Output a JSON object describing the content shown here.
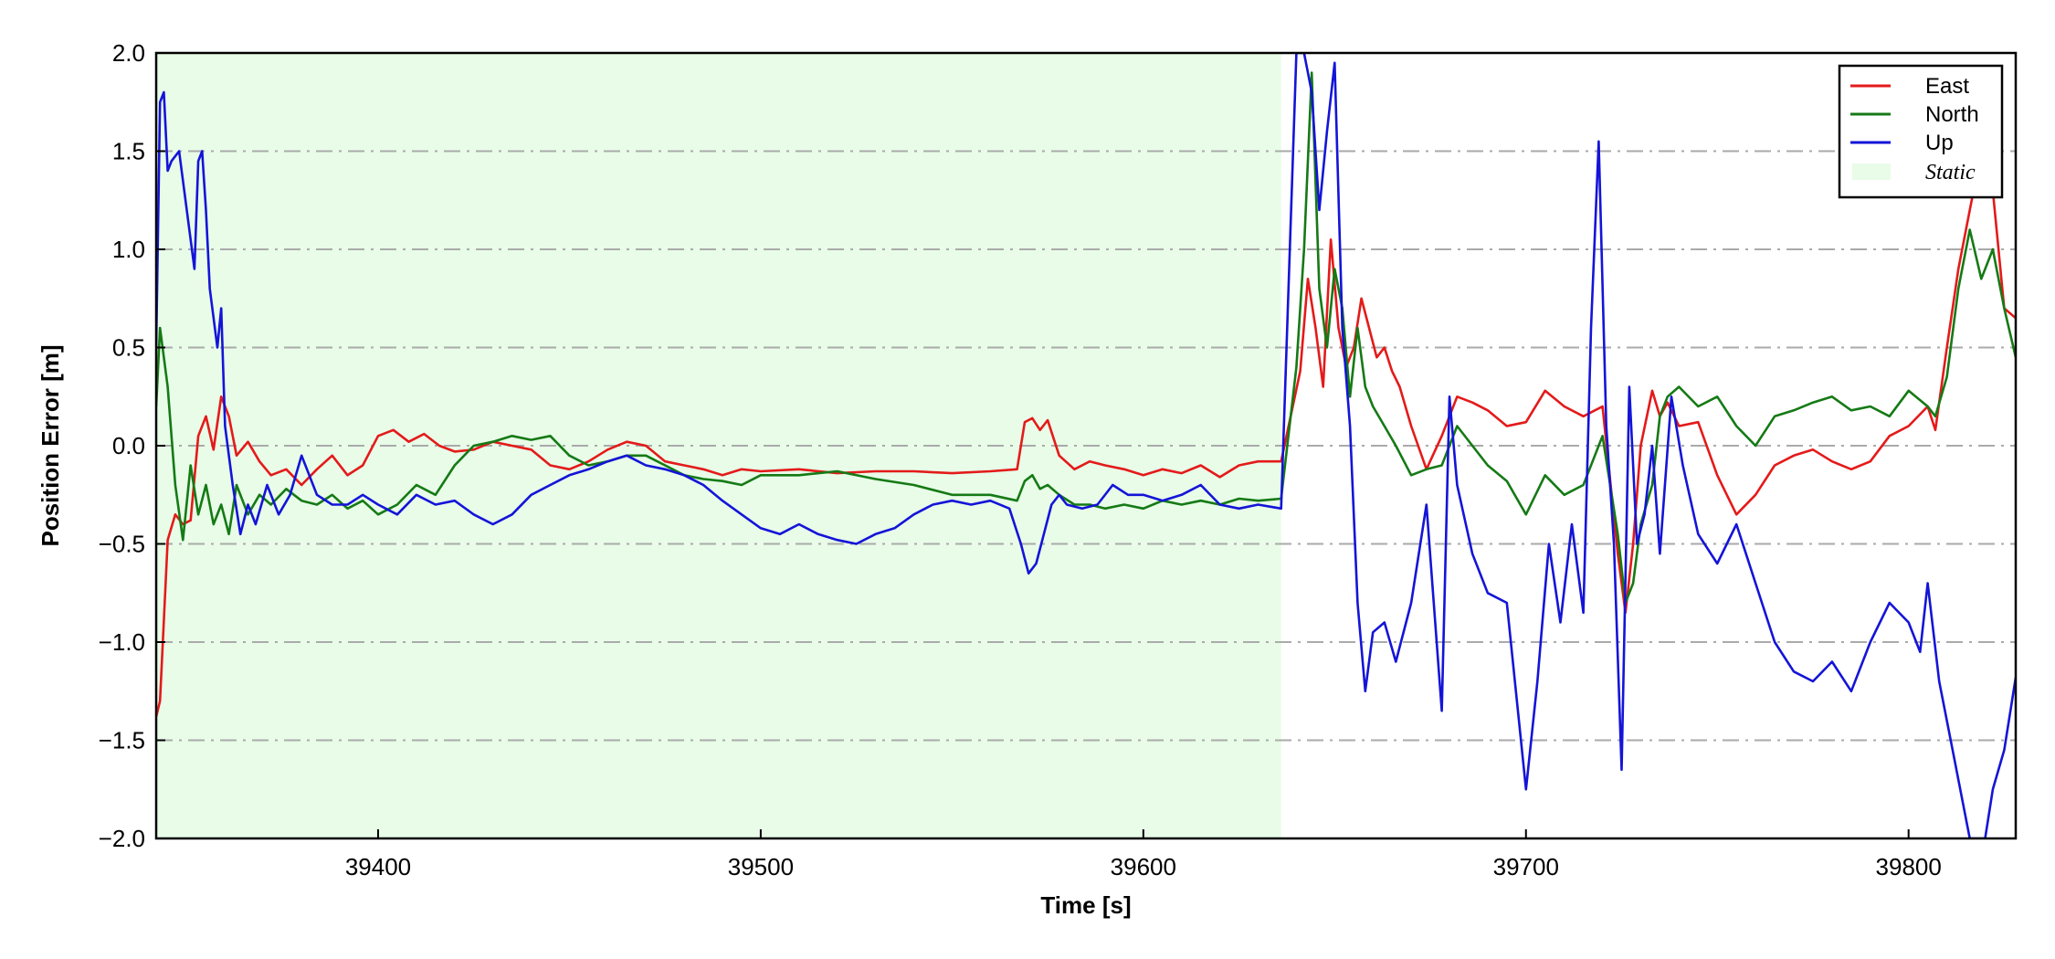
{
  "chart_data": {
    "type": "line",
    "title": "",
    "xlabel": "Time [s]",
    "ylabel": "Position Error [m]",
    "xlim": [
      39342,
      39828
    ],
    "ylim": [
      -2.0,
      2.0
    ],
    "xticks": [
      39400,
      39500,
      39600,
      39700,
      39800
    ],
    "xtick_labels": [
      "39400",
      "39500",
      "39600",
      "39700",
      "39800"
    ],
    "yticks": [
      -2.0,
      -1.5,
      -1.0,
      -0.5,
      0.0,
      0.5,
      1.0,
      1.5,
      2.0
    ],
    "ytick_labels": [
      "−2.0",
      "−1.5",
      "−1.0",
      "−0.5",
      "0.0",
      "0.5",
      "1.0",
      "1.5",
      "2.0"
    ],
    "grid": "horizontal dash-dot",
    "legend_position": "top-right",
    "static_region": {
      "name": "Static",
      "x_start": 39342,
      "x_end": 39636,
      "color": "#e8fce8"
    },
    "series": [
      {
        "name": "East",
        "color": "#e41a1a",
        "x": [
          39342,
          39343,
          39345,
          39347,
          39349,
          39351,
          39353,
          39355,
          39357,
          39359,
          39361,
          39363,
          39366,
          39369,
          39372,
          39376,
          39380,
          39384,
          39388,
          39392,
          39396,
          39400,
          39404,
          39408,
          39412,
          39416,
          39420,
          39425,
          39430,
          39435,
          39440,
          39445,
          39450,
          39455,
          39460,
          39465,
          39470,
          39475,
          39480,
          39485,
          39490,
          39495,
          39500,
          39510,
          39520,
          39530,
          39540,
          39550,
          39560,
          39567,
          39569,
          39571,
          39573,
          39575,
          39578,
          39582,
          39586,
          39590,
          39595,
          39600,
          39605,
          39610,
          39615,
          39620,
          39625,
          39630,
          39636,
          39641,
          39643,
          39645,
          39647,
          39649,
          39651,
          39653,
          39655,
          39657,
          39659,
          39661,
          39663,
          39665,
          39667,
          39670,
          39674,
          39678,
          39682,
          39686,
          39690,
          39695,
          39700,
          39705,
          39710,
          39715,
          39720,
          39724,
          39726,
          39728,
          39730,
          39733,
          39735,
          39737,
          39740,
          39745,
          39750,
          39755,
          39760,
          39765,
          39770,
          39775,
          39780,
          39785,
          39790,
          39795,
          39800,
          39805,
          39807,
          39810,
          39813,
          39816,
          39819,
          39822,
          39825,
          39828
        ],
        "values": [
          -1.38,
          -1.3,
          -0.48,
          -0.35,
          -0.4,
          -0.38,
          0.05,
          0.15,
          -0.02,
          0.25,
          0.15,
          -0.05,
          0.02,
          -0.08,
          -0.15,
          -0.12,
          -0.2,
          -0.12,
          -0.05,
          -0.15,
          -0.1,
          0.05,
          0.08,
          0.02,
          0.06,
          0.0,
          -0.03,
          -0.02,
          0.02,
          0.0,
          -0.02,
          -0.1,
          -0.12,
          -0.08,
          -0.02,
          0.02,
          0.0,
          -0.08,
          -0.1,
          -0.12,
          -0.15,
          -0.12,
          -0.13,
          -0.12,
          -0.14,
          -0.13,
          -0.13,
          -0.14,
          -0.13,
          -0.12,
          0.12,
          0.14,
          0.08,
          0.13,
          -0.05,
          -0.12,
          -0.08,
          -0.1,
          -0.12,
          -0.15,
          -0.12,
          -0.14,
          -0.1,
          -0.16,
          -0.1,
          -0.08,
          -0.08,
          0.38,
          0.85,
          0.6,
          0.3,
          1.05,
          0.6,
          0.4,
          0.5,
          0.75,
          0.6,
          0.45,
          0.5,
          0.38,
          0.3,
          0.1,
          -0.12,
          0.05,
          0.25,
          0.22,
          0.18,
          0.1,
          0.12,
          0.28,
          0.2,
          0.15,
          0.2,
          -0.55,
          -0.85,
          -0.5,
          0.0,
          0.28,
          0.15,
          0.22,
          0.1,
          0.12,
          -0.15,
          -0.35,
          -0.25,
          -0.1,
          -0.05,
          -0.02,
          -0.08,
          -0.12,
          -0.08,
          0.05,
          0.1,
          0.2,
          0.08,
          0.5,
          0.9,
          1.2,
          1.5,
          1.3,
          0.7,
          0.65
        ]
      },
      {
        "name": "North",
        "color": "#157a15",
        "x": [
          39342,
          39343,
          39345,
          39347,
          39349,
          39351,
          39353,
          39355,
          39357,
          39359,
          39361,
          39363,
          39366,
          39369,
          39372,
          39376,
          39380,
          39384,
          39388,
          39392,
          39396,
          39400,
          39405,
          39410,
          39415,
          39420,
          39425,
          39430,
          39435,
          39440,
          39445,
          39450,
          39455,
          39460,
          39465,
          39470,
          39475,
          39480,
          39485,
          39490,
          39495,
          39500,
          39510,
          39520,
          39530,
          39540,
          39550,
          39560,
          39567,
          39569,
          39571,
          39573,
          39575,
          39578,
          39582,
          39586,
          39590,
          39595,
          39600,
          39605,
          39610,
          39615,
          39620,
          39625,
          39630,
          39636,
          39640,
          39642,
          39644,
          39646,
          39648,
          39650,
          39652,
          39654,
          39656,
          39658,
          39660,
          39663,
          39666,
          39670,
          39674,
          39678,
          39682,
          39686,
          39690,
          39695,
          39700,
          39705,
          39710,
          39715,
          39720,
          39724,
          39726,
          39728,
          39730,
          39733,
          39735,
          39737,
          39740,
          39745,
          39750,
          39755,
          39760,
          39765,
          39770,
          39775,
          39780,
          39785,
          39790,
          39795,
          39800,
          39805,
          39807,
          39810,
          39813,
          39816,
          39819,
          39822,
          39825,
          39828
        ],
        "values": [
          0.2,
          0.6,
          0.3,
          -0.2,
          -0.48,
          -0.1,
          -0.35,
          -0.2,
          -0.4,
          -0.3,
          -0.45,
          -0.2,
          -0.35,
          -0.25,
          -0.3,
          -0.22,
          -0.28,
          -0.3,
          -0.25,
          -0.32,
          -0.28,
          -0.35,
          -0.3,
          -0.2,
          -0.25,
          -0.1,
          0.0,
          0.02,
          0.05,
          0.03,
          0.05,
          -0.05,
          -0.1,
          -0.08,
          -0.05,
          -0.05,
          -0.1,
          -0.15,
          -0.17,
          -0.18,
          -0.2,
          -0.15,
          -0.15,
          -0.13,
          -0.17,
          -0.2,
          -0.25,
          -0.25,
          -0.28,
          -0.18,
          -0.15,
          -0.22,
          -0.2,
          -0.25,
          -0.3,
          -0.3,
          -0.32,
          -0.3,
          -0.32,
          -0.28,
          -0.3,
          -0.28,
          -0.3,
          -0.27,
          -0.28,
          -0.27,
          0.4,
          1.0,
          1.9,
          0.8,
          0.5,
          0.9,
          0.7,
          0.25,
          0.6,
          0.3,
          0.2,
          0.1,
          0.0,
          -0.15,
          -0.12,
          -0.1,
          0.1,
          0.0,
          -0.1,
          -0.18,
          -0.35,
          -0.15,
          -0.25,
          -0.2,
          0.05,
          -0.45,
          -0.8,
          -0.7,
          -0.4,
          -0.2,
          0.15,
          0.25,
          0.3,
          0.2,
          0.25,
          0.1,
          0.0,
          0.15,
          0.18,
          0.22,
          0.25,
          0.18,
          0.2,
          0.15,
          0.28,
          0.2,
          0.15,
          0.35,
          0.8,
          1.1,
          0.85,
          1.0,
          0.7,
          0.45
        ]
      },
      {
        "name": "Up",
        "color": "#1414d8",
        "x": [
          39342,
          39343,
          39344,
          39345,
          39346,
          39348,
          39350,
          39352,
          39353,
          39354,
          39355,
          39356,
          39358,
          39359,
          39360,
          39362,
          39364,
          39366,
          39368,
          39371,
          39374,
          39377,
          39380,
          39384,
          39388,
          39392,
          39396,
          39400,
          39405,
          39410,
          39415,
          39420,
          39425,
          39430,
          39435,
          39440,
          39445,
          39450,
          39455,
          39460,
          39465,
          39470,
          39475,
          39480,
          39485,
          39490,
          39495,
          39500,
          39505,
          39510,
          39515,
          39520,
          39525,
          39530,
          39535,
          39540,
          39545,
          39550,
          39555,
          39560,
          39565,
          39568,
          39570,
          39572,
          39574,
          39576,
          39578,
          39580,
          39584,
          39588,
          39592,
          39596,
          39600,
          39605,
          39610,
          39615,
          39620,
          39625,
          39630,
          39636,
          39640,
          39642,
          39644,
          39646,
          39648,
          39650,
          39652,
          39654,
          39656,
          39658,
          39660,
          39663,
          39666,
          39670,
          39674,
          39678,
          39680,
          39682,
          39686,
          39690,
          39695,
          39700,
          39703,
          39706,
          39709,
          39712,
          39715,
          39717,
          39719,
          39721,
          39723,
          39725,
          39727,
          39729,
          39731,
          39733,
          39735,
          39738,
          39741,
          39745,
          39750,
          39755,
          39760,
          39765,
          39770,
          39775,
          39780,
          39785,
          39790,
          39795,
          39800,
          39803,
          39805,
          39808,
          39812,
          39816,
          39820,
          39822,
          39825,
          39828
        ],
        "values": [
          0.5,
          1.75,
          1.8,
          1.4,
          1.45,
          1.5,
          1.2,
          0.9,
          1.45,
          1.5,
          1.2,
          0.8,
          0.5,
          0.7,
          0.1,
          -0.2,
          -0.45,
          -0.3,
          -0.4,
          -0.2,
          -0.35,
          -0.25,
          -0.05,
          -0.25,
          -0.3,
          -0.3,
          -0.25,
          -0.3,
          -0.35,
          -0.25,
          -0.3,
          -0.28,
          -0.35,
          -0.4,
          -0.35,
          -0.25,
          -0.2,
          -0.15,
          -0.12,
          -0.08,
          -0.05,
          -0.1,
          -0.12,
          -0.15,
          -0.2,
          -0.28,
          -0.35,
          -0.42,
          -0.45,
          -0.4,
          -0.45,
          -0.48,
          -0.5,
          -0.45,
          -0.42,
          -0.35,
          -0.3,
          -0.28,
          -0.3,
          -0.28,
          -0.32,
          -0.5,
          -0.65,
          -0.6,
          -0.45,
          -0.3,
          -0.25,
          -0.3,
          -0.32,
          -0.3,
          -0.2,
          -0.25,
          -0.25,
          -0.28,
          -0.25,
          -0.2,
          -0.3,
          -0.32,
          -0.3,
          -0.32,
          2.0,
          2.0,
          1.8,
          1.2,
          1.6,
          1.95,
          0.6,
          0.1,
          -0.8,
          -1.25,
          -0.95,
          -0.9,
          -1.1,
          -0.8,
          -0.3,
          -1.35,
          0.25,
          -0.2,
          -0.55,
          -0.75,
          -0.8,
          -1.75,
          -1.2,
          -0.5,
          -0.9,
          -0.4,
          -0.85,
          0.6,
          1.55,
          0.1,
          -0.5,
          -1.65,
          0.3,
          -0.5,
          -0.35,
          0.0,
          -0.55,
          0.25,
          -0.1,
          -0.45,
          -0.6,
          -0.4,
          -0.7,
          -1.0,
          -1.15,
          -1.2,
          -1.1,
          -1.25,
          -1.0,
          -0.8,
          -0.9,
          -1.05,
          -0.7,
          -1.2,
          -1.6,
          -2.0,
          -2.0,
          -1.75,
          -1.55,
          -1.18
        ]
      }
    ]
  }
}
